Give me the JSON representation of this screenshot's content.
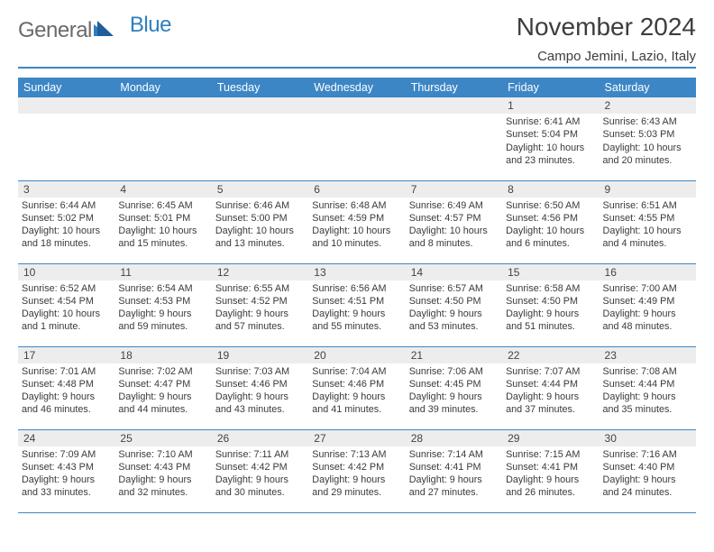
{
  "logo": {
    "general": "General",
    "blue": "Blue"
  },
  "title": "November 2024",
  "location": "Campo Jemini, Lazio, Italy",
  "colors": {
    "accent": "#3d86c6",
    "header_text": "#ffffff",
    "daynum_bg": "#ededed",
    "text": "#3a3a3a",
    "background": "#ffffff"
  },
  "typography": {
    "title_fontsize": 28,
    "location_fontsize": 15,
    "dayhead_fontsize": 12.5,
    "body_fontsize": 10.8
  },
  "day_headers": [
    "Sunday",
    "Monday",
    "Tuesday",
    "Wednesday",
    "Thursday",
    "Friday",
    "Saturday"
  ],
  "weeks": [
    [
      null,
      null,
      null,
      null,
      null,
      {
        "num": "1",
        "sunrise": "Sunrise: 6:41 AM",
        "sunset": "Sunset: 5:04 PM",
        "daylight": "Daylight: 10 hours and 23 minutes."
      },
      {
        "num": "2",
        "sunrise": "Sunrise: 6:43 AM",
        "sunset": "Sunset: 5:03 PM",
        "daylight": "Daylight: 10 hours and 20 minutes."
      }
    ],
    [
      {
        "num": "3",
        "sunrise": "Sunrise: 6:44 AM",
        "sunset": "Sunset: 5:02 PM",
        "daylight": "Daylight: 10 hours and 18 minutes."
      },
      {
        "num": "4",
        "sunrise": "Sunrise: 6:45 AM",
        "sunset": "Sunset: 5:01 PM",
        "daylight": "Daylight: 10 hours and 15 minutes."
      },
      {
        "num": "5",
        "sunrise": "Sunrise: 6:46 AM",
        "sunset": "Sunset: 5:00 PM",
        "daylight": "Daylight: 10 hours and 13 minutes."
      },
      {
        "num": "6",
        "sunrise": "Sunrise: 6:48 AM",
        "sunset": "Sunset: 4:59 PM",
        "daylight": "Daylight: 10 hours and 10 minutes."
      },
      {
        "num": "7",
        "sunrise": "Sunrise: 6:49 AM",
        "sunset": "Sunset: 4:57 PM",
        "daylight": "Daylight: 10 hours and 8 minutes."
      },
      {
        "num": "8",
        "sunrise": "Sunrise: 6:50 AM",
        "sunset": "Sunset: 4:56 PM",
        "daylight": "Daylight: 10 hours and 6 minutes."
      },
      {
        "num": "9",
        "sunrise": "Sunrise: 6:51 AM",
        "sunset": "Sunset: 4:55 PM",
        "daylight": "Daylight: 10 hours and 4 minutes."
      }
    ],
    [
      {
        "num": "10",
        "sunrise": "Sunrise: 6:52 AM",
        "sunset": "Sunset: 4:54 PM",
        "daylight": "Daylight: 10 hours and 1 minute."
      },
      {
        "num": "11",
        "sunrise": "Sunrise: 6:54 AM",
        "sunset": "Sunset: 4:53 PM",
        "daylight": "Daylight: 9 hours and 59 minutes."
      },
      {
        "num": "12",
        "sunrise": "Sunrise: 6:55 AM",
        "sunset": "Sunset: 4:52 PM",
        "daylight": "Daylight: 9 hours and 57 minutes."
      },
      {
        "num": "13",
        "sunrise": "Sunrise: 6:56 AM",
        "sunset": "Sunset: 4:51 PM",
        "daylight": "Daylight: 9 hours and 55 minutes."
      },
      {
        "num": "14",
        "sunrise": "Sunrise: 6:57 AM",
        "sunset": "Sunset: 4:50 PM",
        "daylight": "Daylight: 9 hours and 53 minutes."
      },
      {
        "num": "15",
        "sunrise": "Sunrise: 6:58 AM",
        "sunset": "Sunset: 4:50 PM",
        "daylight": "Daylight: 9 hours and 51 minutes."
      },
      {
        "num": "16",
        "sunrise": "Sunrise: 7:00 AM",
        "sunset": "Sunset: 4:49 PM",
        "daylight": "Daylight: 9 hours and 48 minutes."
      }
    ],
    [
      {
        "num": "17",
        "sunrise": "Sunrise: 7:01 AM",
        "sunset": "Sunset: 4:48 PM",
        "daylight": "Daylight: 9 hours and 46 minutes."
      },
      {
        "num": "18",
        "sunrise": "Sunrise: 7:02 AM",
        "sunset": "Sunset: 4:47 PM",
        "daylight": "Daylight: 9 hours and 44 minutes."
      },
      {
        "num": "19",
        "sunrise": "Sunrise: 7:03 AM",
        "sunset": "Sunset: 4:46 PM",
        "daylight": "Daylight: 9 hours and 43 minutes."
      },
      {
        "num": "20",
        "sunrise": "Sunrise: 7:04 AM",
        "sunset": "Sunset: 4:46 PM",
        "daylight": "Daylight: 9 hours and 41 minutes."
      },
      {
        "num": "21",
        "sunrise": "Sunrise: 7:06 AM",
        "sunset": "Sunset: 4:45 PM",
        "daylight": "Daylight: 9 hours and 39 minutes."
      },
      {
        "num": "22",
        "sunrise": "Sunrise: 7:07 AM",
        "sunset": "Sunset: 4:44 PM",
        "daylight": "Daylight: 9 hours and 37 minutes."
      },
      {
        "num": "23",
        "sunrise": "Sunrise: 7:08 AM",
        "sunset": "Sunset: 4:44 PM",
        "daylight": "Daylight: 9 hours and 35 minutes."
      }
    ],
    [
      {
        "num": "24",
        "sunrise": "Sunrise: 7:09 AM",
        "sunset": "Sunset: 4:43 PM",
        "daylight": "Daylight: 9 hours and 33 minutes."
      },
      {
        "num": "25",
        "sunrise": "Sunrise: 7:10 AM",
        "sunset": "Sunset: 4:43 PM",
        "daylight": "Daylight: 9 hours and 32 minutes."
      },
      {
        "num": "26",
        "sunrise": "Sunrise: 7:11 AM",
        "sunset": "Sunset: 4:42 PM",
        "daylight": "Daylight: 9 hours and 30 minutes."
      },
      {
        "num": "27",
        "sunrise": "Sunrise: 7:13 AM",
        "sunset": "Sunset: 4:42 PM",
        "daylight": "Daylight: 9 hours and 29 minutes."
      },
      {
        "num": "28",
        "sunrise": "Sunrise: 7:14 AM",
        "sunset": "Sunset: 4:41 PM",
        "daylight": "Daylight: 9 hours and 27 minutes."
      },
      {
        "num": "29",
        "sunrise": "Sunrise: 7:15 AM",
        "sunset": "Sunset: 4:41 PM",
        "daylight": "Daylight: 9 hours and 26 minutes."
      },
      {
        "num": "30",
        "sunrise": "Sunrise: 7:16 AM",
        "sunset": "Sunset: 4:40 PM",
        "daylight": "Daylight: 9 hours and 24 minutes."
      }
    ]
  ]
}
